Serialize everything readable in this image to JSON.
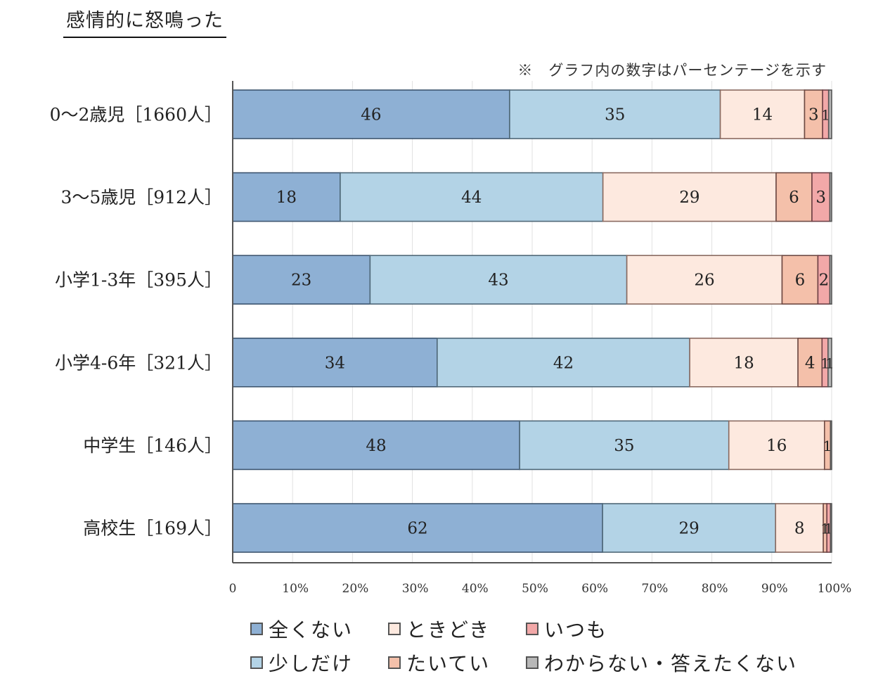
{
  "header": {
    "title": "感情的に怒鳴った",
    "note": "※　グラフ内の数字はパーセンテージを示す"
  },
  "chart_data": {
    "type": "bar",
    "orientation": "horizontal",
    "stacked": true,
    "title": "感情的に怒鳴った",
    "annotation": "※　グラフ内の数字はパーセンテージを示す",
    "xlabel": "",
    "ylabel": "",
    "xlim": [
      0,
      100
    ],
    "x_ticks": [
      "0",
      "10%",
      "20%",
      "30%",
      "40%",
      "50%",
      "60%",
      "70%",
      "80%",
      "90%",
      "100%"
    ],
    "grid": true,
    "legend_position": "bottom",
    "categories": [
      "0～2歳児［1660人］",
      "3～5歳児［912人］",
      "小学1-3年［395人］",
      "小学4-6年［321人］",
      "中学生［146人］",
      "高校生［169人］"
    ],
    "series": [
      {
        "name": "全くない",
        "color": "#8eb0d4",
        "border": "#3e5670",
        "values": [
          46,
          18,
          23,
          34,
          48,
          62
        ],
        "labels": [
          "46",
          "18",
          "23",
          "34",
          "48",
          "62"
        ]
      },
      {
        "name": "少しだけ",
        "color": "#b3d3e6",
        "border": "#4f6878",
        "values": [
          35,
          44,
          43,
          42,
          35,
          29
        ],
        "labels": [
          "35",
          "44",
          "43",
          "42",
          "35",
          "29"
        ]
      },
      {
        "name": "ときどき",
        "color": "#fde9df",
        "border": "#8a6a60",
        "values": [
          14,
          29,
          26,
          18,
          16,
          8
        ],
        "labels": [
          "14",
          "29",
          "26",
          "18",
          "16",
          "8"
        ]
      },
      {
        "name": "たいてい",
        "color": "#f4c0aa",
        "border": "#6e4a44",
        "values": [
          3,
          6,
          6,
          4,
          1,
          0.6
        ],
        "labels": [
          "3",
          "6",
          "6",
          "4",
          "1",
          "1"
        ]
      },
      {
        "name": "いつも",
        "color": "#f2a8a8",
        "border": "#6e4046",
        "values": [
          1,
          3,
          2,
          1,
          0,
          0.6
        ],
        "labels": [
          "1",
          "3",
          "2",
          "1",
          "",
          "1"
        ]
      },
      {
        "name": "わからない・答えたくない",
        "color": "#b8b8b8",
        "border": "#555555",
        "values": [
          0.5,
          0.3,
          0.3,
          0.6,
          0.2,
          0.2
        ],
        "labels": [
          "",
          "",
          "",
          "1",
          "",
          ""
        ]
      }
    ]
  },
  "legend": {
    "items": [
      {
        "label": "全くない",
        "color": "#8eb0d4"
      },
      {
        "label": "ときどき",
        "color": "#fde9df"
      },
      {
        "label": "いつも",
        "color": "#f2a8a8"
      },
      {
        "label": "少しだけ",
        "color": "#b3d3e6"
      },
      {
        "label": "たいてい",
        "color": "#f4c0aa"
      },
      {
        "label": "わからない・答えたくない",
        "color": "#b8b8b8"
      }
    ]
  }
}
